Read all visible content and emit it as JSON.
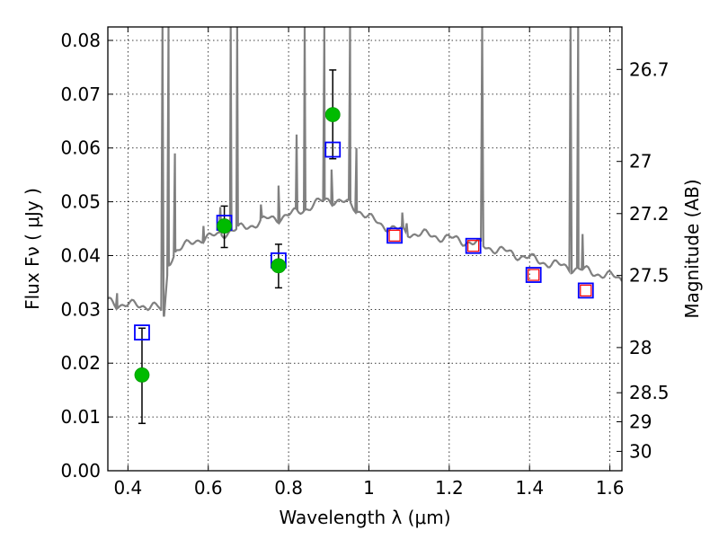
{
  "chart_data": {
    "type": "scatter",
    "xlabel": "Wavelength  λ (μm)",
    "ylabel": "Flux  Fν  ( μJy )",
    "y2label": "Magnitude (AB)",
    "xlim": [
      0.35,
      1.63
    ],
    "ylim": [
      0.0,
      0.0825
    ],
    "grid": true,
    "x_ticks": [
      {
        "value": 0.4,
        "label": "0.4"
      },
      {
        "value": 0.6,
        "label": "0.6"
      },
      {
        "value": 0.8,
        "label": "0.8"
      },
      {
        "value": 1.0,
        "label": "1"
      },
      {
        "value": 1.2,
        "label": "1.2"
      },
      {
        "value": 1.4,
        "label": "1.4"
      },
      {
        "value": 1.6,
        "label": "1.6"
      }
    ],
    "y_ticks": [
      {
        "value": 0.0,
        "label": "0.00"
      },
      {
        "value": 0.01,
        "label": "0.01"
      },
      {
        "value": 0.02,
        "label": "0.02"
      },
      {
        "value": 0.03,
        "label": "0.03"
      },
      {
        "value": 0.04,
        "label": "0.04"
      },
      {
        "value": 0.05,
        "label": "0.05"
      },
      {
        "value": 0.06,
        "label": "0.06"
      },
      {
        "value": 0.07,
        "label": "0.07"
      },
      {
        "value": 0.08,
        "label": "0.08"
      }
    ],
    "y2_ticks": [
      {
        "flux": 0.0746,
        "label": "26.7"
      },
      {
        "flux": 0.0575,
        "label": "27"
      },
      {
        "flux": 0.0478,
        "label": "27.2"
      },
      {
        "flux": 0.0363,
        "label": "27.5"
      },
      {
        "flux": 0.0229,
        "label": "28"
      },
      {
        "flux": 0.0145,
        "label": "28.5"
      },
      {
        "flux": 0.0091,
        "label": "29"
      },
      {
        "flux": 0.0036,
        "label": "30"
      }
    ],
    "series": [
      {
        "kind": "line",
        "color": "#808080",
        "continuum": [
          [
            0.35,
            0.0315
          ],
          [
            0.37,
            0.031
          ],
          [
            0.4,
            0.031
          ],
          [
            0.43,
            0.0305
          ],
          [
            0.46,
            0.031
          ],
          [
            0.48,
            0.03
          ],
          [
            0.49,
            0.028
          ],
          [
            0.5,
            0.0385
          ],
          [
            0.52,
            0.041
          ],
          [
            0.55,
            0.042
          ],
          [
            0.58,
            0.0432
          ],
          [
            0.6,
            0.0434
          ],
          [
            0.62,
            0.0436
          ],
          [
            0.65,
            0.0445
          ],
          [
            0.68,
            0.045
          ],
          [
            0.7,
            0.0455
          ],
          [
            0.72,
            0.046
          ],
          [
            0.75,
            0.0468
          ],
          [
            0.77,
            0.047
          ],
          [
            0.8,
            0.0475
          ],
          [
            0.82,
            0.048
          ],
          [
            0.85,
            0.049
          ],
          [
            0.88,
            0.05
          ],
          [
            0.9,
            0.0505
          ],
          [
            0.93,
            0.05
          ],
          [
            0.95,
            0.0495
          ],
          [
            0.98,
            0.0482
          ],
          [
            1.0,
            0.047
          ],
          [
            1.03,
            0.0458
          ],
          [
            1.06,
            0.045
          ],
          [
            1.1,
            0.0442
          ],
          [
            1.15,
            0.0438
          ],
          [
            1.2,
            0.0432
          ],
          [
            1.25,
            0.0425
          ],
          [
            1.3,
            0.0415
          ],
          [
            1.35,
            0.0405
          ],
          [
            1.4,
            0.0395
          ],
          [
            1.45,
            0.0385
          ],
          [
            1.5,
            0.0378
          ],
          [
            1.55,
            0.037
          ],
          [
            1.6,
            0.0362
          ],
          [
            1.63,
            0.0356
          ]
        ],
        "emission_lines": [
          {
            "x": 0.373,
            "peak": 0.033
          },
          {
            "x": 0.486,
            "peak": 0.0825
          },
          {
            "x": 0.501,
            "peak": 0.0825
          },
          {
            "x": 0.517,
            "peak": 0.059
          },
          {
            "x": 0.588,
            "peak": 0.0455
          },
          {
            "x": 0.63,
            "peak": 0.049
          },
          {
            "x": 0.656,
            "peak": 0.0825
          },
          {
            "x": 0.672,
            "peak": 0.0825
          },
          {
            "x": 0.731,
            "peak": 0.0495
          },
          {
            "x": 0.775,
            "peak": 0.053
          },
          {
            "x": 0.82,
            "peak": 0.0625
          },
          {
            "x": 0.84,
            "peak": 0.0825
          },
          {
            "x": 0.889,
            "peak": 0.0825
          },
          {
            "x": 0.907,
            "peak": 0.056
          },
          {
            "x": 0.953,
            "peak": 0.0825
          },
          {
            "x": 0.969,
            "peak": 0.06
          },
          {
            "x": 1.083,
            "peak": 0.048
          },
          {
            "x": 1.094,
            "peak": 0.046
          },
          {
            "x": 1.282,
            "peak": 0.0825
          },
          {
            "x": 1.502,
            "peak": 0.0825
          },
          {
            "x": 1.521,
            "peak": 0.0825
          },
          {
            "x": 1.532,
            "peak": 0.044
          }
        ]
      },
      {
        "kind": "points",
        "marker": "circle",
        "color": "#00bb00",
        "points": [
          {
            "x": 0.435,
            "y": 0.0178,
            "yerr_low": 0.0088,
            "yerr_high": 0.0265
          },
          {
            "x": 0.64,
            "y": 0.0455,
            "yerr_low": 0.0415,
            "yerr_high": 0.0492
          },
          {
            "x": 0.775,
            "y": 0.0381,
            "yerr_low": 0.034,
            "yerr_high": 0.0421
          },
          {
            "x": 0.91,
            "y": 0.0662,
            "yerr_low": 0.058,
            "yerr_high": 0.0745
          }
        ]
      },
      {
        "kind": "points",
        "marker": "square",
        "color": "#0000ff",
        "points": [
          {
            "x": 0.435,
            "y": 0.0257
          },
          {
            "x": 0.64,
            "y": 0.0461
          },
          {
            "x": 0.775,
            "y": 0.0391
          },
          {
            "x": 0.91,
            "y": 0.0597
          },
          {
            "x": 1.064,
            "y": 0.0437
          },
          {
            "x": 1.26,
            "y": 0.0418
          },
          {
            "x": 1.41,
            "y": 0.0364
          },
          {
            "x": 1.54,
            "y": 0.0335
          }
        ]
      },
      {
        "kind": "points",
        "marker": "square",
        "color": "#ff0000",
        "points": [
          {
            "x": 1.064,
            "y": 0.0437
          },
          {
            "x": 1.26,
            "y": 0.0418
          },
          {
            "x": 1.41,
            "y": 0.0364
          },
          {
            "x": 1.54,
            "y": 0.0335
          }
        ]
      }
    ]
  }
}
